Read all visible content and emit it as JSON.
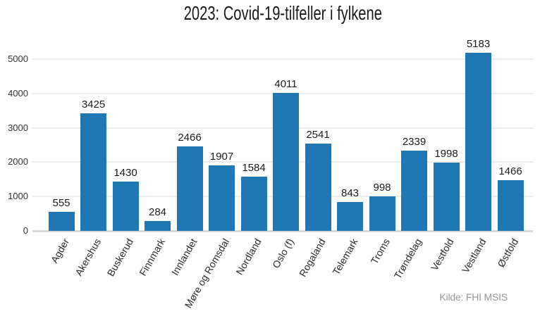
{
  "chart_data": {
    "type": "bar",
    "title": "2023: Covid-19-tilfeller i fylkene",
    "caption": "Kilde: FHI MSIS",
    "categories": [
      "Agder",
      "Akershus",
      "Buskerud",
      "Finnmark",
      "Innlandet",
      "Møre og Romsdal",
      "Nordland",
      "Oslo (f)",
      "Rogaland",
      "Telemark",
      "Troms",
      "Trøndelag",
      "Vestfold",
      "Vestland",
      "Østfold"
    ],
    "values": [
      555,
      3425,
      1430,
      284,
      2466,
      1907,
      1584,
      4011,
      2541,
      843,
      998,
      2339,
      1998,
      5183,
      1466
    ],
    "xlabel": "",
    "ylabel": "",
    "yticks": [
      0,
      1000,
      2000,
      3000,
      4000,
      5000
    ],
    "ylim": [
      0,
      5000
    ],
    "bar_color": "#1f77b4",
    "grid": "horizontal-only",
    "legend": "none",
    "value_labels": "above-bars",
    "x_label_rotation_deg": 60
  }
}
